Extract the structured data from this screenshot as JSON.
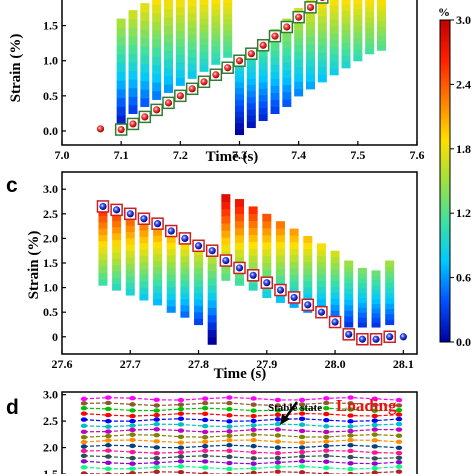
{
  "chart_data": [
    {
      "panel": "",
      "type": "scatter",
      "xlabel": "Time (s)",
      "ylabel": "Strain (%)",
      "xlim": [
        7.0,
        7.6
      ],
      "ylim": [
        -0.2,
        1.95
      ],
      "xticks": [
        "7.0",
        "7.1",
        "7.2",
        "7.3",
        "7.4",
        "7.5",
        "7.6"
      ],
      "yticks": [
        "0.0",
        "0.5",
        "1.0",
        "1.5"
      ],
      "strain_columns": [
        {
          "x": 7.1,
          "bottom": 0.1,
          "top": 1.6
        },
        {
          "x": 7.12,
          "bottom": 0.25,
          "top": 1.72
        },
        {
          "x": 7.14,
          "bottom": 0.35,
          "top": 1.82
        },
        {
          "x": 7.16,
          "bottom": 0.45,
          "top": 1.93
        },
        {
          "x": 7.18,
          "bottom": 0.55,
          "top": 1.98
        },
        {
          "x": 7.2,
          "bottom": 0.65,
          "top": 1.99
        },
        {
          "x": 7.22,
          "bottom": 0.75,
          "top": 1.99
        },
        {
          "x": 7.24,
          "bottom": 0.85,
          "top": 1.99
        },
        {
          "x": 7.26,
          "bottom": 0.95,
          "top": 1.99
        },
        {
          "x": 7.28,
          "bottom": 1.05,
          "top": 1.99
        },
        {
          "x": 7.3,
          "bottom": -0.05,
          "top": 0.95
        },
        {
          "x": 7.32,
          "bottom": 0.05,
          "top": 1.1
        },
        {
          "x": 7.34,
          "bottom": 0.15,
          "top": 1.25
        },
        {
          "x": 7.36,
          "bottom": 0.25,
          "top": 1.45
        },
        {
          "x": 7.38,
          "bottom": 0.35,
          "top": 1.6
        },
        {
          "x": 7.4,
          "bottom": 0.5,
          "top": 1.75
        },
        {
          "x": 7.42,
          "bottom": 0.6,
          "top": 1.88
        },
        {
          "x": 7.44,
          "bottom": 0.7,
          "top": 1.96
        },
        {
          "x": 7.46,
          "bottom": 0.8,
          "top": 1.99
        },
        {
          "x": 7.48,
          "bottom": 0.9,
          "top": 1.99
        },
        {
          "x": 7.5,
          "bottom": 1.0,
          "top": 1.99
        },
        {
          "x": 7.52,
          "bottom": 1.1,
          "top": 1.99
        },
        {
          "x": 7.54,
          "bottom": 1.15,
          "top": 1.99
        }
      ],
      "markers": [
        {
          "x": 7.065,
          "y": 0.03,
          "boxed": false
        },
        {
          "x": 7.1,
          "y": 0.02,
          "boxed": true
        },
        {
          "x": 7.12,
          "y": 0.1,
          "boxed": true
        },
        {
          "x": 7.14,
          "y": 0.2,
          "boxed": true
        },
        {
          "x": 7.16,
          "y": 0.3,
          "boxed": true
        },
        {
          "x": 7.18,
          "y": 0.4,
          "boxed": true
        },
        {
          "x": 7.2,
          "y": 0.5,
          "boxed": true
        },
        {
          "x": 7.22,
          "y": 0.6,
          "boxed": true
        },
        {
          "x": 7.24,
          "y": 0.7,
          "boxed": true
        },
        {
          "x": 7.26,
          "y": 0.8,
          "boxed": true
        },
        {
          "x": 7.28,
          "y": 0.9,
          "boxed": true
        },
        {
          "x": 7.3,
          "y": 1.0,
          "boxed": true
        },
        {
          "x": 7.32,
          "y": 1.1,
          "boxed": true
        },
        {
          "x": 7.34,
          "y": 1.22,
          "boxed": true
        },
        {
          "x": 7.36,
          "y": 1.35,
          "boxed": true
        },
        {
          "x": 7.38,
          "y": 1.48,
          "boxed": true
        },
        {
          "x": 7.4,
          "y": 1.62,
          "boxed": true
        },
        {
          "x": 7.42,
          "y": 1.76,
          "boxed": true
        },
        {
          "x": 7.44,
          "y": 1.9,
          "boxed": true
        }
      ]
    },
    {
      "panel": "c",
      "type": "scatter",
      "xlabel": "Time (s)",
      "ylabel": "Strain (%)",
      "xlim": [
        27.6,
        28.12
      ],
      "ylim": [
        -0.35,
        3.35
      ],
      "xticks": [
        "27.6",
        "27.7",
        "27.8",
        "27.9",
        "28.0",
        "28.1"
      ],
      "yticks": [
        "0",
        "0.5",
        "1.0",
        "1.5",
        "2.0",
        "2.5",
        "3.0"
      ],
      "strain_columns": [
        {
          "x": 27.66,
          "bottom": 1.05,
          "top": 2.6
        },
        {
          "x": 27.68,
          "bottom": 0.95,
          "top": 2.5
        },
        {
          "x": 27.7,
          "bottom": 0.85,
          "top": 2.4
        },
        {
          "x": 27.72,
          "bottom": 0.75,
          "top": 2.3
        },
        {
          "x": 27.74,
          "bottom": 0.65,
          "top": 2.2
        },
        {
          "x": 27.76,
          "bottom": 0.5,
          "top": 2.05
        },
        {
          "x": 27.78,
          "bottom": 0.4,
          "top": 1.9
        },
        {
          "x": 27.8,
          "bottom": 0.25,
          "top": 1.8
        },
        {
          "x": 27.82,
          "bottom": -0.15,
          "top": 1.65
        },
        {
          "x": 27.84,
          "bottom": 1.15,
          "top": 2.9
        },
        {
          "x": 27.86,
          "bottom": 1.05,
          "top": 2.8
        },
        {
          "x": 27.88,
          "bottom": 0.95,
          "top": 2.65
        },
        {
          "x": 27.9,
          "bottom": 0.8,
          "top": 2.5
        },
        {
          "x": 27.92,
          "bottom": 0.7,
          "top": 2.35
        },
        {
          "x": 27.94,
          "bottom": 0.6,
          "top": 2.2
        },
        {
          "x": 27.96,
          "bottom": 0.5,
          "top": 2.05
        },
        {
          "x": 27.98,
          "bottom": 0.4,
          "top": 1.9
        },
        {
          "x": 28.0,
          "bottom": 0.3,
          "top": 1.75
        },
        {
          "x": 28.02,
          "bottom": 0.2,
          "top": 1.55
        },
        {
          "x": 28.04,
          "bottom": 0.2,
          "top": 1.4
        },
        {
          "x": 28.06,
          "bottom": 0.2,
          "top": 1.35
        },
        {
          "x": 28.08,
          "bottom": 0.25,
          "top": 1.55
        }
      ],
      "markers": [
        {
          "x": 27.66,
          "y": 2.65,
          "boxed": true
        },
        {
          "x": 27.68,
          "y": 2.58,
          "boxed": true
        },
        {
          "x": 27.7,
          "y": 2.5,
          "boxed": true
        },
        {
          "x": 27.72,
          "y": 2.4,
          "boxed": true
        },
        {
          "x": 27.74,
          "y": 2.3,
          "boxed": true
        },
        {
          "x": 27.76,
          "y": 2.15,
          "boxed": true
        },
        {
          "x": 27.78,
          "y": 2.0,
          "boxed": true
        },
        {
          "x": 27.8,
          "y": 1.85,
          "boxed": true
        },
        {
          "x": 27.82,
          "y": 1.75,
          "boxed": true
        },
        {
          "x": 27.84,
          "y": 1.55,
          "boxed": true
        },
        {
          "x": 27.86,
          "y": 1.4,
          "boxed": true
        },
        {
          "x": 27.88,
          "y": 1.25,
          "boxed": true
        },
        {
          "x": 27.9,
          "y": 1.1,
          "boxed": true
        },
        {
          "x": 27.92,
          "y": 0.95,
          "boxed": true
        },
        {
          "x": 27.94,
          "y": 0.8,
          "boxed": true
        },
        {
          "x": 27.96,
          "y": 0.65,
          "boxed": true
        },
        {
          "x": 27.98,
          "y": 0.5,
          "boxed": true
        },
        {
          "x": 28.0,
          "y": 0.3,
          "boxed": true
        },
        {
          "x": 28.02,
          "y": 0.05,
          "boxed": true
        },
        {
          "x": 28.04,
          "y": -0.05,
          "boxed": true
        },
        {
          "x": 28.06,
          "y": -0.05,
          "boxed": true
        },
        {
          "x": 28.08,
          "y": 0.0,
          "boxed": true
        },
        {
          "x": 28.1,
          "y": 0.0,
          "boxed": false
        }
      ]
    },
    {
      "panel": "d",
      "type": "line",
      "xlabel": "",
      "ylabel": "",
      "ylim": [
        1.35,
        3.05
      ],
      "yticks": [
        "3.0",
        "2.5",
        "2.0",
        "1.5"
      ],
      "annotations": [
        "Stable state",
        "Loading"
      ],
      "line_levels": [
        2.92,
        2.82,
        2.72,
        2.62,
        2.52,
        2.42,
        2.32,
        2.22,
        2.12,
        2.02,
        1.92,
        1.82,
        1.72,
        1.62,
        1.52,
        1.42
      ],
      "point_count": 14,
      "line_colors": [
        "#ff00ff",
        "#8b5a2b",
        "#00c000",
        "#ff0000",
        "#0000ff",
        "#00bfbf",
        "#c000c0",
        "#808000",
        "#ff8c00",
        "#004080",
        "#ff1493",
        "#2f4f4f",
        "#9400d3",
        "#00ff7f",
        "#b22222",
        "#1e90ff"
      ]
    }
  ],
  "panel_labels": {
    "c": "c",
    "d": "d"
  },
  "colorbar": {
    "unit": "%",
    "ticks": [
      "3.0",
      "2.4",
      "1.8",
      "1.2",
      "0.6",
      "0.0"
    ],
    "min": 0.0,
    "max": 3.0,
    "colors": [
      "#0000a0",
      "#0050ff",
      "#00c8ff",
      "#40e0a0",
      "#a0e040",
      "#ffe000",
      "#ff8000",
      "#ff2000",
      "#c00000"
    ]
  },
  "marker_colors": {
    "loading_fill": "#dd1111",
    "unloading_fill": "#1020c0",
    "box_a": "#2e7d32",
    "box_c": "#cc1f1f"
  }
}
